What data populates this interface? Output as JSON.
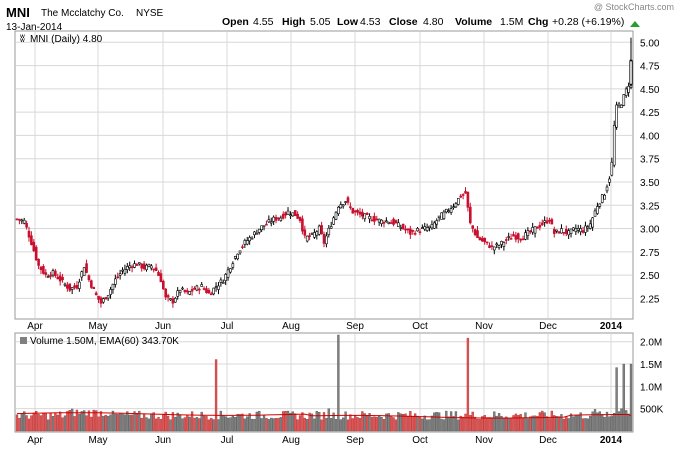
{
  "header": {
    "symbol": "MNI",
    "company": "The Mcclatchy Co.",
    "exchange": "NYSE",
    "date": "13-Jan-2014",
    "watermark": "@ StockCharts.com",
    "open_label": "Open",
    "open": "4.55",
    "high_label": "High",
    "high": "5.05",
    "low_label": "Low",
    "low": "4.53",
    "close_label": "Close",
    "close": "4.80",
    "volume_label": "Volume",
    "volume": "1.5M",
    "chg_label": "Chg",
    "chg": "+0.28 (+6.19%)"
  },
  "colors": {
    "up": "#000000",
    "down": "#c8102e",
    "vol_up": "#808080",
    "vol_down": "#e05555",
    "ema": "#d00000",
    "grid": "#d8d8d8",
    "arrow": "#2a9d2a"
  },
  "chart_data": [
    {
      "type": "candlestick",
      "legend": "MNI (Daily) 4.80",
      "ylim": [
        2.05,
        5.1
      ],
      "y_ticks": [
        "2.25",
        "2.50",
        "2.75",
        "3.00",
        "3.25",
        "3.50",
        "3.75",
        "4.00",
        "4.25",
        "4.50",
        "4.75",
        "5.00"
      ],
      "x_ticks": [
        "Apr",
        "May",
        "Jun",
        "Jul",
        "Aug",
        "Sep",
        "Oct",
        "Nov",
        "Dec",
        "2014"
      ],
      "close_path": [
        [
          0,
          3.1
        ],
        [
          3,
          3.08
        ],
        [
          6,
          2.85
        ],
        [
          9,
          2.6
        ],
        [
          12,
          2.5
        ],
        [
          15,
          2.52
        ],
        [
          18,
          2.45
        ],
        [
          22,
          2.35
        ],
        [
          25,
          2.38
        ],
        [
          28,
          2.6
        ],
        [
          30,
          2.45
        ],
        [
          33,
          2.28
        ],
        [
          35,
          2.2
        ],
        [
          38,
          2.3
        ],
        [
          41,
          2.45
        ],
        [
          44,
          2.55
        ],
        [
          47,
          2.6
        ],
        [
          50,
          2.62
        ],
        [
          53,
          2.58
        ],
        [
          56,
          2.6
        ],
        [
          58,
          2.55
        ],
        [
          60,
          2.45
        ],
        [
          62,
          2.25
        ],
        [
          65,
          2.22
        ],
        [
          68,
          2.35
        ],
        [
          71,
          2.3
        ],
        [
          74,
          2.35
        ],
        [
          77,
          2.38
        ],
        [
          80,
          2.3
        ],
        [
          83,
          2.38
        ],
        [
          86,
          2.45
        ],
        [
          89,
          2.6
        ],
        [
          92,
          2.75
        ],
        [
          95,
          2.85
        ],
        [
          98,
          2.92
        ],
        [
          101,
          3.0
        ],
        [
          104,
          3.05
        ],
        [
          107,
          3.1
        ],
        [
          110,
          3.12
        ],
        [
          113,
          3.18
        ],
        [
          116,
          3.15
        ],
        [
          118,
          3.1
        ],
        [
          120,
          2.9
        ],
        [
          123,
          2.92
        ],
        [
          126,
          3.0
        ],
        [
          128,
          2.85
        ],
        [
          131,
          3.05
        ],
        [
          134,
          3.25
        ],
        [
          137,
          3.3
        ],
        [
          140,
          3.18
        ],
        [
          143,
          3.15
        ],
        [
          146,
          3.12
        ],
        [
          149,
          3.1
        ],
        [
          152,
          3.08
        ],
        [
          155,
          3.08
        ],
        [
          158,
          3.05
        ],
        [
          161,
          3.0
        ],
        [
          164,
          2.95
        ],
        [
          167,
          2.98
        ],
        [
          170,
          3.0
        ],
        [
          173,
          3.02
        ],
        [
          176,
          3.12
        ],
        [
          179,
          3.18
        ],
        [
          182,
          3.25
        ],
        [
          185,
          3.35
        ],
        [
          187,
          3.38
        ],
        [
          189,
          3.05
        ],
        [
          192,
          2.9
        ],
        [
          195,
          2.85
        ],
        [
          198,
          2.8
        ],
        [
          201,
          2.82
        ],
        [
          204,
          2.88
        ],
        [
          207,
          2.92
        ],
        [
          210,
          2.9
        ],
        [
          213,
          2.95
        ],
        [
          216,
          3.0
        ],
        [
          219,
          3.05
        ],
        [
          222,
          3.1
        ],
        [
          224,
          2.95
        ],
        [
          227,
          2.98
        ],
        [
          230,
          2.95
        ],
        [
          233,
          3.0
        ],
        [
          236,
          2.98
        ],
        [
          239,
          3.05
        ],
        [
          242,
          3.25
        ],
        [
          245,
          3.38
        ],
        [
          247,
          3.55
        ],
        [
          248,
          3.7
        ],
        [
          249,
          4.1
        ],
        [
          250,
          4.3
        ],
        [
          252,
          4.35
        ],
        [
          255,
          4.55
        ],
        [
          256,
          4.8
        ]
      ],
      "n_days": 257
    },
    {
      "type": "bar",
      "legend": "Volume 1.50M, EMA(60) 343.70K",
      "ylim": [
        0,
        2150000
      ],
      "y_ticks": [
        "500K",
        "1.0M",
        "1.5M",
        "2.0M"
      ],
      "x_ticks": [
        "Apr",
        "May",
        "Jun",
        "Jul",
        "Aug",
        "Sep",
        "Oct",
        "Nov",
        "Dec",
        "2014"
      ],
      "ema_start": 390000,
      "ema_end": 343700,
      "spikes": [
        [
          83,
          1600000,
          "down"
        ],
        [
          130,
          500000,
          "up"
        ],
        [
          134,
          2150000,
          "up"
        ],
        [
          188,
          2080000,
          "down"
        ],
        [
          250,
          1420000,
          "up"
        ],
        [
          253,
          1500000,
          "up"
        ],
        [
          256,
          1500000,
          "up"
        ]
      ]
    }
  ]
}
